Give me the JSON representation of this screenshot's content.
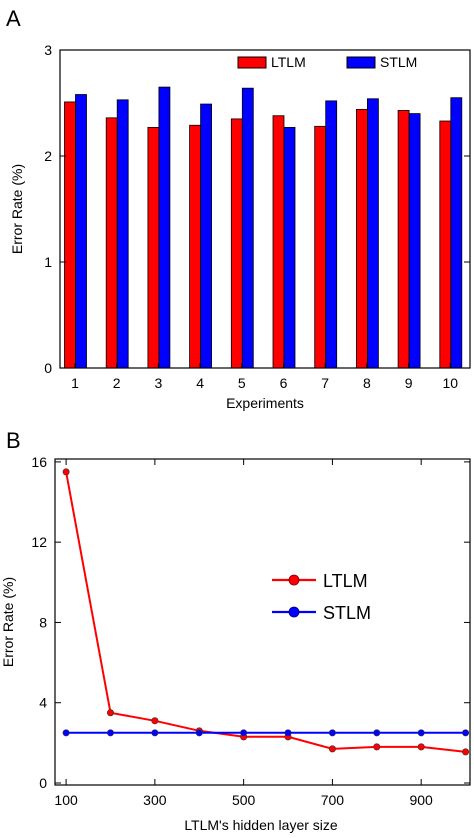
{
  "chart_data": [
    {
      "panel": "A",
      "type": "bar",
      "xlabel": "Experiments",
      "ylabel": "Error Rate (%)",
      "categories": [
        "1",
        "2",
        "3",
        "4",
        "5",
        "6",
        "7",
        "8",
        "9",
        "10"
      ],
      "ylim": [
        0,
        3
      ],
      "yticks": [
        "0",
        "1",
        "2",
        "3"
      ],
      "legend_position": "top-right",
      "series": [
        {
          "name": "LTLM",
          "color": "#ff0000",
          "values": [
            2.51,
            2.36,
            2.27,
            2.29,
            2.35,
            2.38,
            2.28,
            2.44,
            2.43,
            2.33
          ]
        },
        {
          "name": "STLM",
          "color": "#0000ff",
          "values": [
            2.58,
            2.53,
            2.65,
            2.49,
            2.64,
            2.27,
            2.52,
            2.54,
            2.4,
            2.55
          ]
        }
      ]
    },
    {
      "panel": "B",
      "type": "line",
      "xlabel": "LTLM's hidden layer size",
      "ylabel": "Error Rate (%)",
      "x": [
        100,
        200,
        300,
        400,
        500,
        600,
        700,
        800,
        900,
        1000
      ],
      "xlim": [
        75,
        1010
      ],
      "ylim": [
        0,
        16
      ],
      "xticks": [
        "100",
        "300",
        "500",
        "700",
        "900"
      ],
      "yticks": [
        "0",
        "4",
        "8",
        "12",
        "16"
      ],
      "legend_position": "center-right",
      "series": [
        {
          "name": "LTLM",
          "color": "#ff0000",
          "values": [
            15.5,
            3.5,
            3.1,
            2.6,
            2.3,
            2.3,
            1.7,
            1.8,
            1.8,
            1.55
          ]
        },
        {
          "name": "STLM",
          "color": "#0000ff",
          "values": [
            2.5,
            2.5,
            2.5,
            2.5,
            2.5,
            2.5,
            2.5,
            2.5,
            2.5,
            2.5
          ]
        }
      ]
    }
  ]
}
